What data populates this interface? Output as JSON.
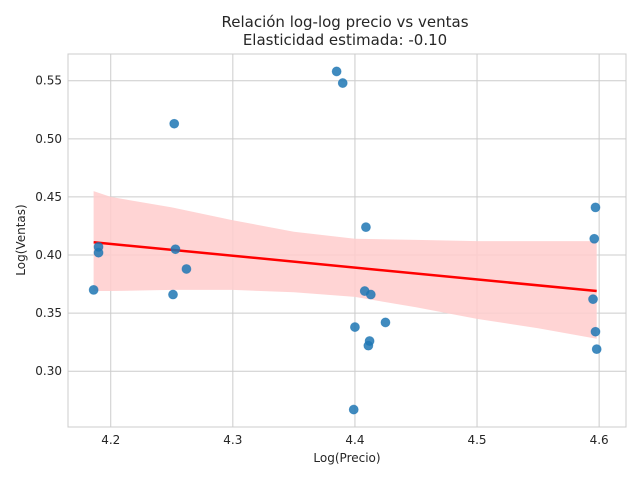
{
  "chart_data": {
    "type": "scatter",
    "title": "Relación log-log precio vs ventas",
    "subtitle": "Elasticidad estimada: -0.10",
    "xlabel": "Log(Precio)",
    "ylabel": "Log(Ventas)",
    "xlim": [
      4.165,
      4.622
    ],
    "ylim": [
      0.252,
      0.573
    ],
    "xticks": [
      4.2,
      4.3,
      4.4,
      4.5,
      4.6
    ],
    "xtick_labels": [
      "4.2",
      "4.3",
      "4.4",
      "4.5",
      "4.6"
    ],
    "yticks": [
      0.3,
      0.35,
      0.4,
      0.45,
      0.5,
      0.55
    ],
    "ytick_labels": [
      "0.30",
      "0.35",
      "0.40",
      "0.45",
      "0.50",
      "0.55"
    ],
    "grid": true,
    "points": [
      {
        "x": 4.186,
        "y": 0.37
      },
      {
        "x": 4.19,
        "y": 0.407
      },
      {
        "x": 4.19,
        "y": 0.402
      },
      {
        "x": 4.251,
        "y": 0.366
      },
      {
        "x": 4.252,
        "y": 0.513
      },
      {
        "x": 4.253,
        "y": 0.405
      },
      {
        "x": 4.262,
        "y": 0.388
      },
      {
        "x": 4.385,
        "y": 0.558
      },
      {
        "x": 4.39,
        "y": 0.548
      },
      {
        "x": 4.399,
        "y": 0.267
      },
      {
        "x": 4.4,
        "y": 0.338
      },
      {
        "x": 4.408,
        "y": 0.369
      },
      {
        "x": 4.409,
        "y": 0.424
      },
      {
        "x": 4.411,
        "y": 0.322
      },
      {
        "x": 4.412,
        "y": 0.326
      },
      {
        "x": 4.413,
        "y": 0.366
      },
      {
        "x": 4.425,
        "y": 0.342
      },
      {
        "x": 4.595,
        "y": 0.362
      },
      {
        "x": 4.596,
        "y": 0.414
      },
      {
        "x": 4.597,
        "y": 0.441
      },
      {
        "x": 4.597,
        "y": 0.334
      },
      {
        "x": 4.598,
        "y": 0.319
      }
    ],
    "regression": {
      "x": [
        4.186,
        4.598
      ],
      "y": [
        0.411,
        0.369
      ]
    },
    "confidence_band": {
      "x": [
        4.186,
        4.2,
        4.25,
        4.3,
        4.35,
        4.4,
        4.45,
        4.5,
        4.55,
        4.598
      ],
      "upper": [
        0.455,
        0.45,
        0.441,
        0.43,
        0.42,
        0.414,
        0.413,
        0.412,
        0.412,
        0.412
      ],
      "lower": [
        0.369,
        0.369,
        0.37,
        0.37,
        0.368,
        0.364,
        0.355,
        0.345,
        0.337,
        0.328
      ]
    },
    "colors": {
      "points": "#1f77b4",
      "line": "#ff0000",
      "band": "#ffcccc"
    }
  }
}
